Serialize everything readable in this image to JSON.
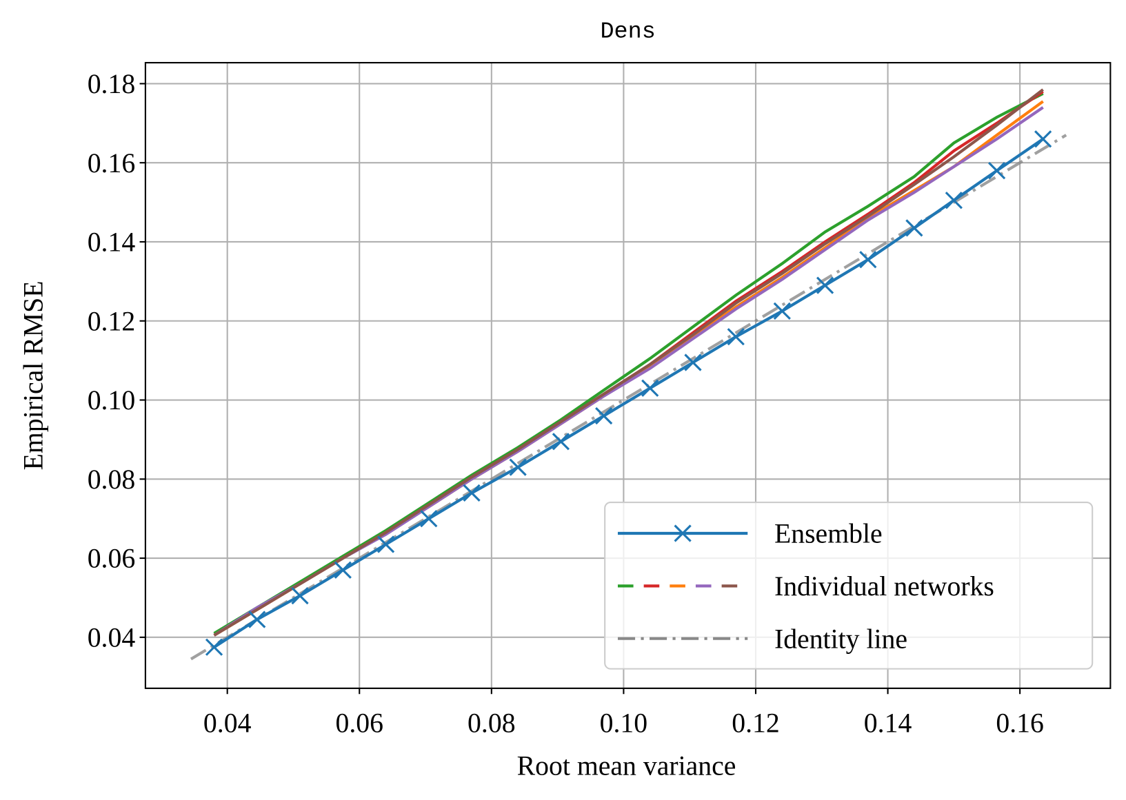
{
  "chart_data": {
    "type": "line",
    "title": "Dens",
    "x_label": "Root mean variance",
    "y_label": "Empirical RMSE",
    "xlim": [
      0.0276,
      0.1737
    ],
    "ylim": [
      0.0271,
      0.1853
    ],
    "xticks": [
      0.04,
      0.06,
      0.08,
      {
        "value": 0.1,
        "label": "0.10"
      },
      0.12,
      0.14,
      0.16
    ],
    "yticks": [
      0.04,
      0.06,
      0.08,
      {
        "value": 0.1,
        "label": "0.10"
      },
      0.12,
      0.14,
      0.16,
      0.18
    ],
    "grid": true,
    "legend_position": "lower right",
    "x": [
      0.038,
      0.0445,
      0.051,
      0.0575,
      0.064,
      0.0705,
      0.077,
      0.084,
      0.0905,
      0.097,
      0.104,
      0.1105,
      0.117,
      0.124,
      0.1305,
      0.137,
      0.144,
      0.15,
      0.1565,
      0.1635
    ],
    "series": [
      {
        "name": "Ensemble",
        "color": "#1f77b4",
        "values": [
          0.0375,
          0.0445,
          0.0505,
          0.057,
          0.0635,
          0.07,
          0.0765,
          0.083,
          0.0895,
          0.096,
          0.103,
          0.1095,
          0.116,
          0.1225,
          0.129,
          0.1355,
          0.1435,
          0.1505,
          0.158,
          0.166
        ]
      }
    ],
    "individual_networks": {
      "name": "Individual networks",
      "lines": [
        {
          "color": "#2ca02c",
          "values": [
            0.041,
            0.0475,
            0.054,
            0.0605,
            0.067,
            0.074,
            0.081,
            0.088,
            0.095,
            0.1025,
            0.1105,
            0.1185,
            0.1265,
            0.1345,
            0.1425,
            0.149,
            0.1565,
            0.165,
            0.1715,
            0.1775
          ]
        },
        {
          "color": "#d62728",
          "values": [
            0.0405,
            0.047,
            0.0535,
            0.06,
            0.0665,
            0.0735,
            0.0805,
            0.0875,
            0.0945,
            0.1015,
            0.109,
            0.117,
            0.125,
            0.1325,
            0.14,
            0.147,
            0.155,
            0.163,
            0.17,
            0.178
          ]
        },
        {
          "color": "#ff7f0e",
          "values": [
            0.0405,
            0.047,
            0.0535,
            0.06,
            0.0665,
            0.073,
            0.08,
            0.087,
            0.094,
            0.101,
            0.1085,
            0.116,
            0.1235,
            0.131,
            0.1385,
            0.146,
            0.153,
            0.159,
            0.167,
            0.1755
          ]
        },
        {
          "color": "#9467bd",
          "values": [
            0.0405,
            0.0475,
            0.0535,
            0.06,
            0.066,
            0.073,
            0.08,
            0.087,
            0.094,
            0.101,
            0.108,
            0.1155,
            0.123,
            0.1305,
            0.138,
            0.1455,
            0.1525,
            0.159,
            0.166,
            0.174
          ]
        },
        {
          "color": "#8c564b",
          "values": [
            0.0405,
            0.047,
            0.0535,
            0.06,
            0.0665,
            0.0735,
            0.0805,
            0.0875,
            0.0945,
            0.1015,
            0.109,
            0.1165,
            0.1245,
            0.132,
            0.1395,
            0.1465,
            0.1545,
            0.1615,
            0.1695,
            0.1785
          ]
        }
      ]
    },
    "identity_line": {
      "name": "Identity line",
      "color": "#888888",
      "x": [
        0.0345,
        0.167
      ],
      "values": [
        0.0345,
        0.167
      ]
    }
  }
}
